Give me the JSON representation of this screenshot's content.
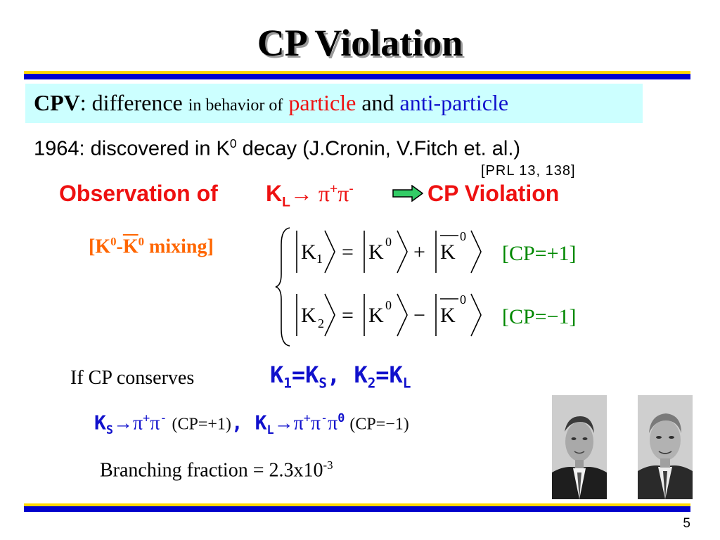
{
  "slide": {
    "title": "CP Violation",
    "colors": {
      "rule_yellow": "#ffd700",
      "rule_blue": "#0000cc",
      "box_bg": "#ccffff",
      "red": "#ee1111",
      "blue": "#1111cc",
      "green": "#008800",
      "orange": "#ff6600"
    },
    "definition": {
      "term": "CPV",
      "colon": ":",
      "w1": "difference",
      "w2": "in behavior of",
      "w3": "particle",
      "w4": "and",
      "w5": "anti-particle"
    },
    "discovery": {
      "pre": "1964: discovered in K",
      "sup": "0",
      "post": " decay  (J.Cronin, V.Fitch et. al.)",
      "ref": "[PRL 13, 138]"
    },
    "observation": {
      "label": "Observation of",
      "k": "K",
      "k_sub": "L",
      "arrow": "→",
      "pi": "π",
      "plus": "+",
      "minus": "-",
      "result": "CP Violation",
      "arrow_icon": "right-arrow-icon"
    },
    "mixing": {
      "open": "[K",
      "sup1": "0",
      "dash": "-",
      "kbar": "K",
      "sup2": "0",
      "close": " mixing]"
    },
    "equations": {
      "k": "K",
      "idx1": "1",
      "idx2": "2",
      "sup0": "0",
      "equals": "=",
      "plus": "+",
      "minus": "−",
      "cp1": "[CP=+1]",
      "cp2": "[CP=−1]"
    },
    "conserve": {
      "label": "If CP conserves",
      "k": "K",
      "s1": "1",
      "eq": "=",
      "sS": "S",
      "comma": ", ",
      "s2": "2",
      "sL": "L"
    },
    "decays": {
      "k": "K",
      "sS": "S",
      "arrow": "→",
      "pi": "π",
      "plus": "+",
      "minus": "-",
      "cp_plus": "(CP=+1)",
      "comma": ", ",
      "sL": "L",
      "zero": "0",
      "cp_minus": "(CP=−1)"
    },
    "branching": {
      "text": "Branching fraction = 2.3x10",
      "exp": "-3"
    },
    "photos": [
      {
        "name": "J.Cronin portrait"
      },
      {
        "name": "V.Fitch portrait"
      }
    ],
    "page_number": "5"
  }
}
